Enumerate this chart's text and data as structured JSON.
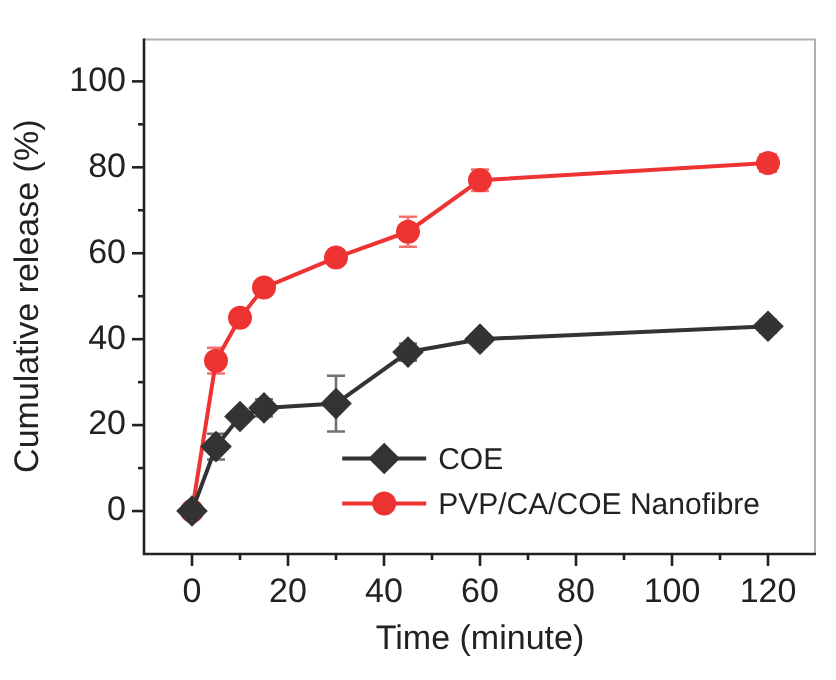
{
  "chart_data": {
    "type": "line",
    "xlabel": "Time (minute)",
    "ylabel": "Cumulative release (%)",
    "x": [
      0,
      5,
      10,
      15,
      30,
      45,
      60,
      120
    ],
    "series": [
      {
        "name": "COE",
        "color": "#333333",
        "marker": "diamond",
        "values": [
          0,
          15,
          22,
          24,
          25,
          37,
          40,
          43
        ],
        "errors": [
          null,
          3,
          1,
          2,
          6.5,
          2,
          1,
          1.5
        ]
      },
      {
        "name": "PVP/CA/COE Nanofibre",
        "color": "#ee3333",
        "marker": "circle",
        "values": [
          0,
          35,
          45,
          52,
          59,
          65,
          77,
          81
        ],
        "errors": [
          null,
          3,
          1,
          1,
          1,
          3.5,
          2.5,
          2
        ]
      }
    ],
    "xlim": [
      -10,
      130
    ],
    "xticks": [
      0,
      {
        "value": 10,
        "label": null
      },
      20,
      {
        "value": 30,
        "label": null
      },
      40,
      {
        "value": 50,
        "label": null
      },
      60,
      {
        "value": 70,
        "label": null
      },
      80,
      {
        "value": 90,
        "label": null
      },
      100,
      {
        "value": 110,
        "label": null
      },
      120
    ],
    "ylim": [
      -10,
      110
    ],
    "yticks": [
      0,
      {
        "value": 10,
        "label": null
      },
      20,
      {
        "value": 30,
        "label": null
      },
      40,
      {
        "value": 50,
        "label": null
      },
      60,
      {
        "value": 70,
        "label": null
      },
      80,
      {
        "value": 90,
        "label": null
      },
      100
    ],
    "grid": false,
    "legend": "bottom right",
    "line_style": "solid"
  }
}
